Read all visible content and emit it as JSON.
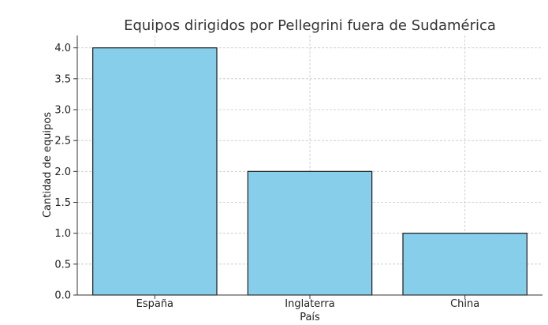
{
  "chart_data": {
    "type": "bar",
    "title": "Equipos dirigidos por Pellegrini fuera de Sudamérica",
    "xlabel": "País",
    "ylabel": "Cantidad de equipos",
    "categories": [
      "España",
      "Inglaterra",
      "China"
    ],
    "values": [
      4,
      2,
      1
    ],
    "ylim": [
      0,
      4.2
    ],
    "yticks": [
      "0.0",
      "0.5",
      "1.0",
      "1.5",
      "2.0",
      "2.5",
      "3.0",
      "3.5",
      "4.0"
    ],
    "grid": true,
    "bar_color": "#87ceeb",
    "bar_edge_color": "#1a1a1a"
  }
}
